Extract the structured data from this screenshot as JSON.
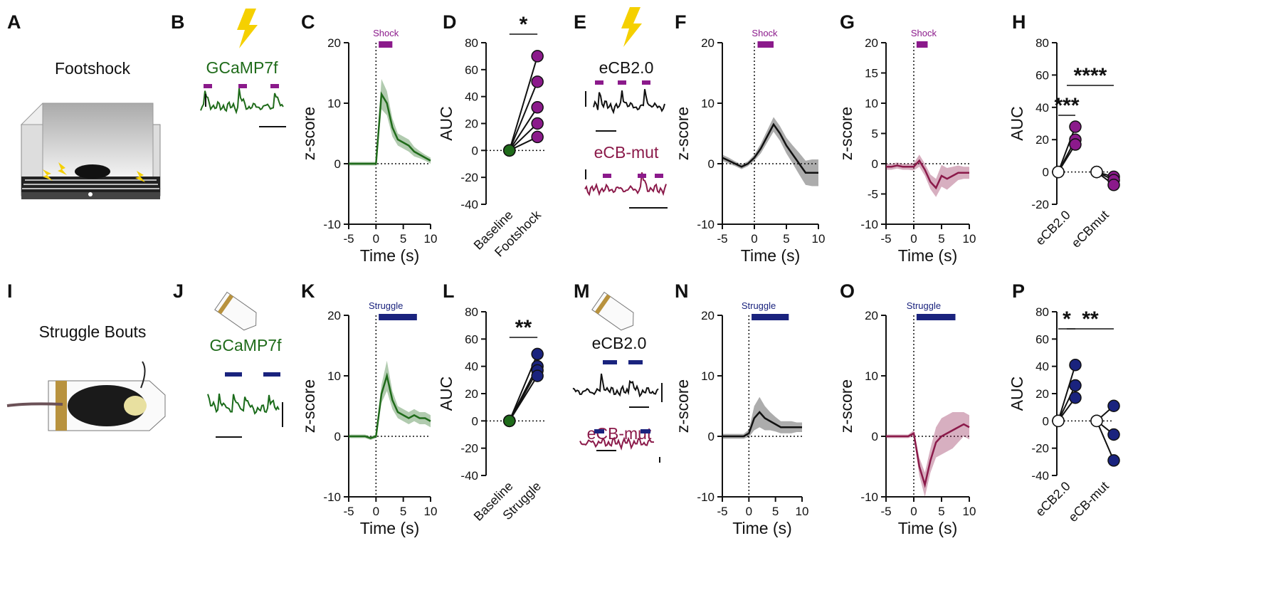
{
  "figure": {
    "panel_labels": [
      "A",
      "B",
      "C",
      "D",
      "E",
      "F",
      "G",
      "H",
      "I",
      "J",
      "K",
      "L",
      "M",
      "N",
      "O",
      "P"
    ],
    "footshock_title": "Footshock",
    "b_sensor": "GCaMP7f",
    "e_sensor_1": "eCB2.0",
    "e_sensor_2": "eCB-mut",
    "struggle_title": "Struggle Bouts",
    "j_sensor": "GCaMP7f",
    "m_sensor_1": "eCB2.0",
    "m_sensor_2": "eCB-mut"
  },
  "chart_data": [
    {
      "type": "line",
      "xlabel": "Time (s)",
      "ylabel": "z-score",
      "xlim": [
        -5,
        10
      ],
      "xticks": [
        -5,
        0,
        5,
        10
      ],
      "ylim": [
        -10,
        20
      ],
      "yticks": [
        -10,
        0,
        10,
        20
      ],
      "zero_lines": true,
      "x": [
        -5,
        -4,
        -3,
        -2,
        -1,
        0,
        1,
        2,
        3,
        4,
        5,
        6,
        7,
        8,
        9,
        10
      ],
      "series": [
        {
          "color": "#1f6b1a",
          "values": [
            0,
            0,
            0,
            0,
            0,
            0,
            11.5,
            10,
            6,
            4,
            3.5,
            3,
            2,
            1.5,
            1,
            0.5
          ],
          "sem": [
            0.3,
            0.3,
            0.3,
            0.3,
            0.3,
            0.3,
            2.5,
            2,
            1.5,
            1,
            1,
            1,
            0.8,
            0.6,
            0.5,
            0.5
          ]
        }
      ],
      "stimulus": {
        "label": "Shock",
        "range": [
          0.5,
          3
        ],
        "color": "#8b1a8b"
      }
    },
    {
      "type": "paired",
      "ylabel": "AUC",
      "ylim": [
        -40,
        80
      ],
      "yticks": [
        -40,
        -20,
        0,
        20,
        40,
        60,
        80
      ],
      "categories": [
        "Baseline",
        "Footshock"
      ],
      "colors": [
        "#1f6b1a",
        "#8b1a8b"
      ],
      "pairs": [
        [
          0,
          70
        ],
        [
          0,
          51
        ],
        [
          0,
          32
        ],
        [
          0,
          20
        ],
        [
          0,
          10
        ]
      ],
      "significance": [
        "*"
      ]
    },
    {
      "type": "line",
      "xlabel": "Time (s)",
      "ylabel": "z-score",
      "xlim": [
        -5,
        10
      ],
      "xticks": [
        -5,
        0,
        5,
        10
      ],
      "ylim": [
        -10,
        20
      ],
      "yticks": [
        -10,
        0,
        10,
        20
      ],
      "zero_lines": true,
      "x": [
        -5,
        -4,
        -3,
        -2,
        -1,
        0,
        1,
        2,
        3,
        4,
        5,
        6,
        7,
        8,
        9,
        10
      ],
      "series": [
        {
          "color": "#111111",
          "values": [
            1,
            0.5,
            0,
            -0.5,
            0,
            1,
            2.5,
            4.5,
            6.5,
            5,
            3,
            1.5,
            0,
            -1.5,
            -1.5,
            -1.5
          ],
          "sem": [
            0.5,
            0.5,
            0.4,
            0.4,
            0.4,
            0.5,
            0.8,
            1,
            1.2,
            1.2,
            1.3,
            1.5,
            1.8,
            2,
            2.2,
            2.2
          ]
        }
      ],
      "stimulus": {
        "label": "Shock",
        "range": [
          0.5,
          3
        ],
        "color": "#8b1a8b"
      }
    },
    {
      "type": "line",
      "xlabel": "Time (s)",
      "ylabel": "z-score",
      "xlim": [
        -5,
        10
      ],
      "xticks": [
        -5,
        0,
        5,
        10
      ],
      "ylim": [
        -10,
        20
      ],
      "yticks": [
        -10,
        -5,
        0,
        5,
        10,
        15,
        20
      ],
      "zero_lines": true,
      "x": [
        -5,
        -4,
        -3,
        -2,
        -1,
        0,
        1,
        2,
        3,
        4,
        5,
        6,
        7,
        8,
        9,
        10
      ],
      "series": [
        {
          "color": "#8b1a4a",
          "values": [
            -0.5,
            -0.5,
            -0.3,
            -0.5,
            -0.5,
            -0.5,
            0.5,
            -1,
            -3,
            -4,
            -2,
            -2.5,
            -2,
            -1.5,
            -1.5,
            -1.5
          ],
          "sem": [
            0.5,
            0.5,
            0.5,
            0.5,
            0.5,
            0.6,
            1,
            1,
            1.2,
            1.5,
            1.8,
            1.8,
            1.5,
            1.2,
            1,
            1
          ]
        }
      ],
      "stimulus": {
        "label": "Shock",
        "range": [
          0.5,
          2.5
        ],
        "color": "#8b1a8b"
      }
    },
    {
      "type": "grouped_paired",
      "ylabel": "AUC",
      "ylim": [
        -20,
        80
      ],
      "yticks": [
        -20,
        0,
        20,
        40,
        60,
        80
      ],
      "categories": [
        "eCB2.0",
        "eCBmut"
      ],
      "colors": [
        "#ffffff",
        "#8b1a8b"
      ],
      "groups": [
        [
          [
            0,
            28
          ],
          [
            0,
            20
          ],
          [
            0,
            17
          ]
        ],
        [
          [
            0,
            -3
          ],
          [
            0,
            -5
          ],
          [
            0,
            -8
          ]
        ]
      ],
      "significance": [
        "***",
        "****"
      ]
    },
    {
      "type": "line",
      "xlabel": "Time (s)",
      "ylabel": "z-score",
      "xlim": [
        -5,
        10
      ],
      "xticks": [
        -5,
        0,
        5,
        10
      ],
      "ylim": [
        -10,
        20
      ],
      "yticks": [
        -10,
        0,
        10,
        20
      ],
      "zero_lines": true,
      "x": [
        -5,
        -4,
        -3,
        -2,
        -1,
        0,
        1,
        2,
        3,
        4,
        5,
        6,
        7,
        8,
        9,
        10
      ],
      "series": [
        {
          "color": "#1f6b1a",
          "values": [
            0,
            0,
            0,
            0,
            -0.3,
            0,
            7,
            10,
            6,
            4,
            3.5,
            3,
            3.5,
            3,
            3,
            2.5
          ],
          "sem": [
            0.3,
            0.3,
            0.3,
            0.3,
            0.3,
            0.3,
            1.5,
            2.5,
            1.5,
            1,
            1,
            1,
            1,
            1,
            1,
            1
          ]
        }
      ],
      "stimulus": {
        "label": "Struggle",
        "range": [
          0.5,
          7.5
        ],
        "color": "#1a237e"
      }
    },
    {
      "type": "paired",
      "ylabel": "AUC",
      "ylim": [
        -40,
        80
      ],
      "yticks": [
        -40,
        -20,
        0,
        20,
        40,
        60,
        80
      ],
      "categories": [
        "Baseline",
        "Struggle"
      ],
      "colors": [
        "#1f6b1a",
        "#1a237e"
      ],
      "pairs": [
        [
          0,
          49
        ],
        [
          0,
          40
        ],
        [
          0,
          37
        ],
        [
          0,
          33
        ]
      ],
      "significance": [
        "**"
      ]
    },
    {
      "type": "line",
      "xlabel": "Time (s)",
      "ylabel": "z-score",
      "xlim": [
        -5,
        10
      ],
      "xticks": [
        -5,
        0,
        5,
        10
      ],
      "ylim": [
        -10,
        20
      ],
      "yticks": [
        -10,
        0,
        10,
        20
      ],
      "zero_lines": true,
      "x": [
        -5,
        -4,
        -3,
        -2,
        -1,
        0,
        1,
        2,
        3,
        4,
        5,
        6,
        7,
        8,
        9,
        10
      ],
      "series": [
        {
          "color": "#111111",
          "values": [
            0,
            0,
            0,
            0,
            0,
            0.5,
            3,
            4,
            3,
            2.5,
            2,
            1.5,
            1.5,
            1.5,
            1.5,
            1.5
          ],
          "sem": [
            0.4,
            0.4,
            0.4,
            0.4,
            0.4,
            0.6,
            2,
            2.5,
            2,
            1.5,
            1.2,
            1,
            1,
            1,
            0.8,
            0.8
          ]
        }
      ],
      "stimulus": {
        "label": "Struggle",
        "range": [
          0.5,
          7.5
        ],
        "color": "#1a237e"
      }
    },
    {
      "type": "line",
      "xlabel": "Time (s)",
      "ylabel": "z-score",
      "xlim": [
        -5,
        10
      ],
      "xticks": [
        -5,
        0,
        5,
        10
      ],
      "ylim": [
        -10,
        20
      ],
      "yticks": [
        -10,
        0,
        10,
        20
      ],
      "zero_lines": true,
      "x": [
        -5,
        -4,
        -3,
        -2,
        -1,
        0,
        1,
        2,
        3,
        4,
        5,
        6,
        7,
        8,
        9,
        10
      ],
      "series": [
        {
          "color": "#8b1a4a",
          "values": [
            0,
            0,
            0,
            0,
            0,
            0.5,
            -5,
            -8,
            -4,
            -1,
            0,
            0.5,
            1,
            1.5,
            2,
            1.5
          ],
          "sem": [
            0.3,
            0.3,
            0.3,
            0.3,
            0.3,
            0.5,
            1.5,
            2,
            2,
            2.5,
            3,
            3,
            3,
            2.5,
            2,
            2
          ]
        }
      ],
      "stimulus": {
        "label": "Struggle",
        "range": [
          0.5,
          7.5
        ],
        "color": "#1a237e"
      }
    },
    {
      "type": "grouped_paired",
      "ylabel": "AUC",
      "ylim": [
        -40,
        80
      ],
      "yticks": [
        -40,
        -20,
        0,
        20,
        40,
        60,
        80
      ],
      "categories": [
        "eCB2.0",
        "eCB-mut"
      ],
      "colors": [
        "#ffffff",
        "#1a237e"
      ],
      "groups": [
        [
          [
            0,
            41
          ],
          [
            0,
            26
          ],
          [
            0,
            17
          ]
        ],
        [
          [
            0,
            11
          ],
          [
            0,
            -10
          ],
          [
            0,
            -29
          ]
        ]
      ],
      "significance": [
        "*",
        "**"
      ]
    }
  ]
}
